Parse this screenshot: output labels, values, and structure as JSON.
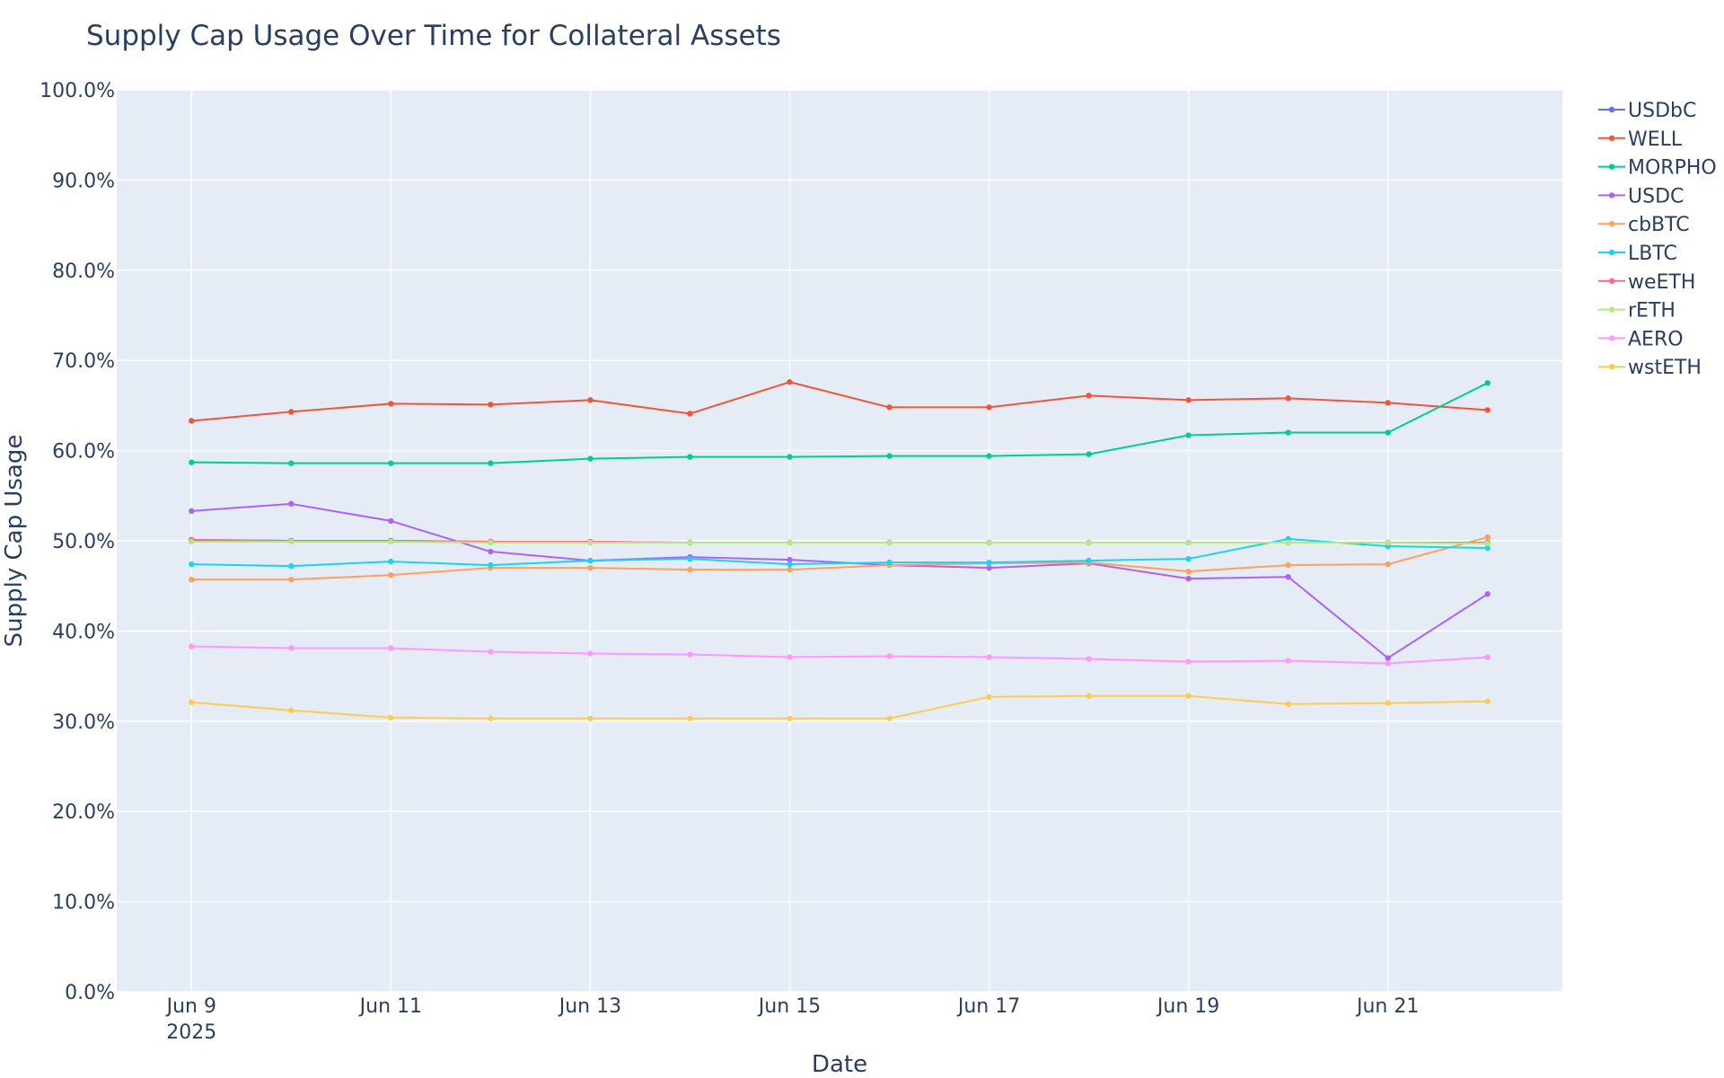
{
  "chart_data": {
    "type": "line",
    "title": "Supply Cap Usage Over Time for Collateral Assets",
    "xlabel": "Date",
    "ylabel": "Supply Cap Usage",
    "x": [
      "2025-06-09",
      "2025-06-10",
      "2025-06-11",
      "2025-06-12",
      "2025-06-13",
      "2025-06-14",
      "2025-06-15",
      "2025-06-16",
      "2025-06-17",
      "2025-06-18",
      "2025-06-19",
      "2025-06-20",
      "2025-06-21",
      "2025-06-22"
    ],
    "x_ticks": [
      {
        "date": "2025-06-09",
        "label": "Jun 9",
        "sublabel": "2025"
      },
      {
        "date": "2025-06-11",
        "label": "Jun 11",
        "sublabel": ""
      },
      {
        "date": "2025-06-13",
        "label": "Jun 13",
        "sublabel": ""
      },
      {
        "date": "2025-06-15",
        "label": "Jun 15",
        "sublabel": ""
      },
      {
        "date": "2025-06-17",
        "label": "Jun 17",
        "sublabel": ""
      },
      {
        "date": "2025-06-19",
        "label": "Jun 19",
        "sublabel": ""
      },
      {
        "date": "2025-06-21",
        "label": "Jun 21",
        "sublabel": ""
      }
    ],
    "xlim": [
      "2025-06-08T06:00",
      "2025-06-22T18:00"
    ],
    "y_ticks": [
      {
        "value": 0,
        "label": "0.0%"
      },
      {
        "value": 10,
        "label": "10.0%"
      },
      {
        "value": 20,
        "label": "20.0%"
      },
      {
        "value": 30,
        "label": "30.0%"
      },
      {
        "value": 40,
        "label": "40.0%"
      },
      {
        "value": 50,
        "label": "50.0%"
      },
      {
        "value": 60,
        "label": "60.0%"
      },
      {
        "value": 70,
        "label": "70.0%"
      },
      {
        "value": 80,
        "label": "80.0%"
      },
      {
        "value": 90,
        "label": "90.0%"
      },
      {
        "value": 100,
        "label": "100.0%"
      }
    ],
    "ylim": [
      0,
      100
    ],
    "grid": true,
    "legend": "right",
    "plot_bg": "#E5ECF6",
    "series": [
      {
        "name": "USDbC",
        "color": "#636EFA",
        "values": [
          50.1,
          50.0,
          50.0,
          49.9,
          49.9,
          49.8,
          49.8,
          49.8,
          49.8,
          49.8,
          49.8,
          49.8,
          49.8,
          49.8
        ]
      },
      {
        "name": "WELL",
        "color": "#EF553B",
        "values": [
          63.3,
          64.3,
          65.2,
          65.1,
          65.6,
          64.1,
          67.6,
          64.8,
          64.8,
          66.1,
          65.6,
          65.8,
          65.3,
          64.5
        ]
      },
      {
        "name": "MORPHO",
        "color": "#00CC96",
        "values": [
          58.7,
          58.6,
          58.6,
          58.6,
          59.1,
          59.3,
          59.3,
          59.4,
          59.4,
          59.6,
          61.7,
          62.0,
          62.0,
          67.5
        ]
      },
      {
        "name": "USDC",
        "color": "#AB63FA",
        "values": [
          53.3,
          54.1,
          52.2,
          48.8,
          47.8,
          48.2,
          47.9,
          47.3,
          47.0,
          47.5,
          45.8,
          46.0,
          37.0,
          44.1
        ]
      },
      {
        "name": "cbBTC",
        "color": "#FFA15A",
        "values": [
          45.7,
          45.7,
          46.2,
          47.0,
          47.0,
          46.8,
          46.8,
          47.3,
          47.5,
          47.6,
          46.6,
          47.3,
          47.4,
          50.4
        ]
      },
      {
        "name": "LBTC",
        "color": "#19D3F3",
        "values": [
          47.4,
          47.2,
          47.7,
          47.3,
          47.8,
          48.0,
          47.4,
          47.6,
          47.6,
          47.8,
          48.0,
          50.2,
          49.4,
          49.2
        ]
      },
      {
        "name": "weETH",
        "color": "#FF6692",
        "values": [
          50.1,
          50.0,
          50.0,
          49.9,
          49.9,
          49.8,
          49.8,
          49.8,
          49.8,
          49.8,
          49.8,
          49.8,
          49.8,
          49.8
        ]
      },
      {
        "name": "rETH",
        "color": "#B6E880",
        "values": [
          49.9,
          49.9,
          49.9,
          49.8,
          49.8,
          49.8,
          49.8,
          49.8,
          49.8,
          49.8,
          49.8,
          49.8,
          49.8,
          49.7
        ]
      },
      {
        "name": "AERO",
        "color": "#FF97FF",
        "values": [
          38.3,
          38.1,
          38.1,
          37.7,
          37.5,
          37.4,
          37.1,
          37.2,
          37.1,
          36.9,
          36.6,
          36.7,
          36.4,
          37.1
        ]
      },
      {
        "name": "wstETH",
        "color": "#FECB52",
        "values": [
          32.1,
          31.2,
          30.4,
          30.3,
          30.3,
          30.3,
          30.3,
          30.3,
          32.7,
          32.8,
          32.8,
          31.9,
          32.0,
          32.2
        ]
      }
    ]
  }
}
